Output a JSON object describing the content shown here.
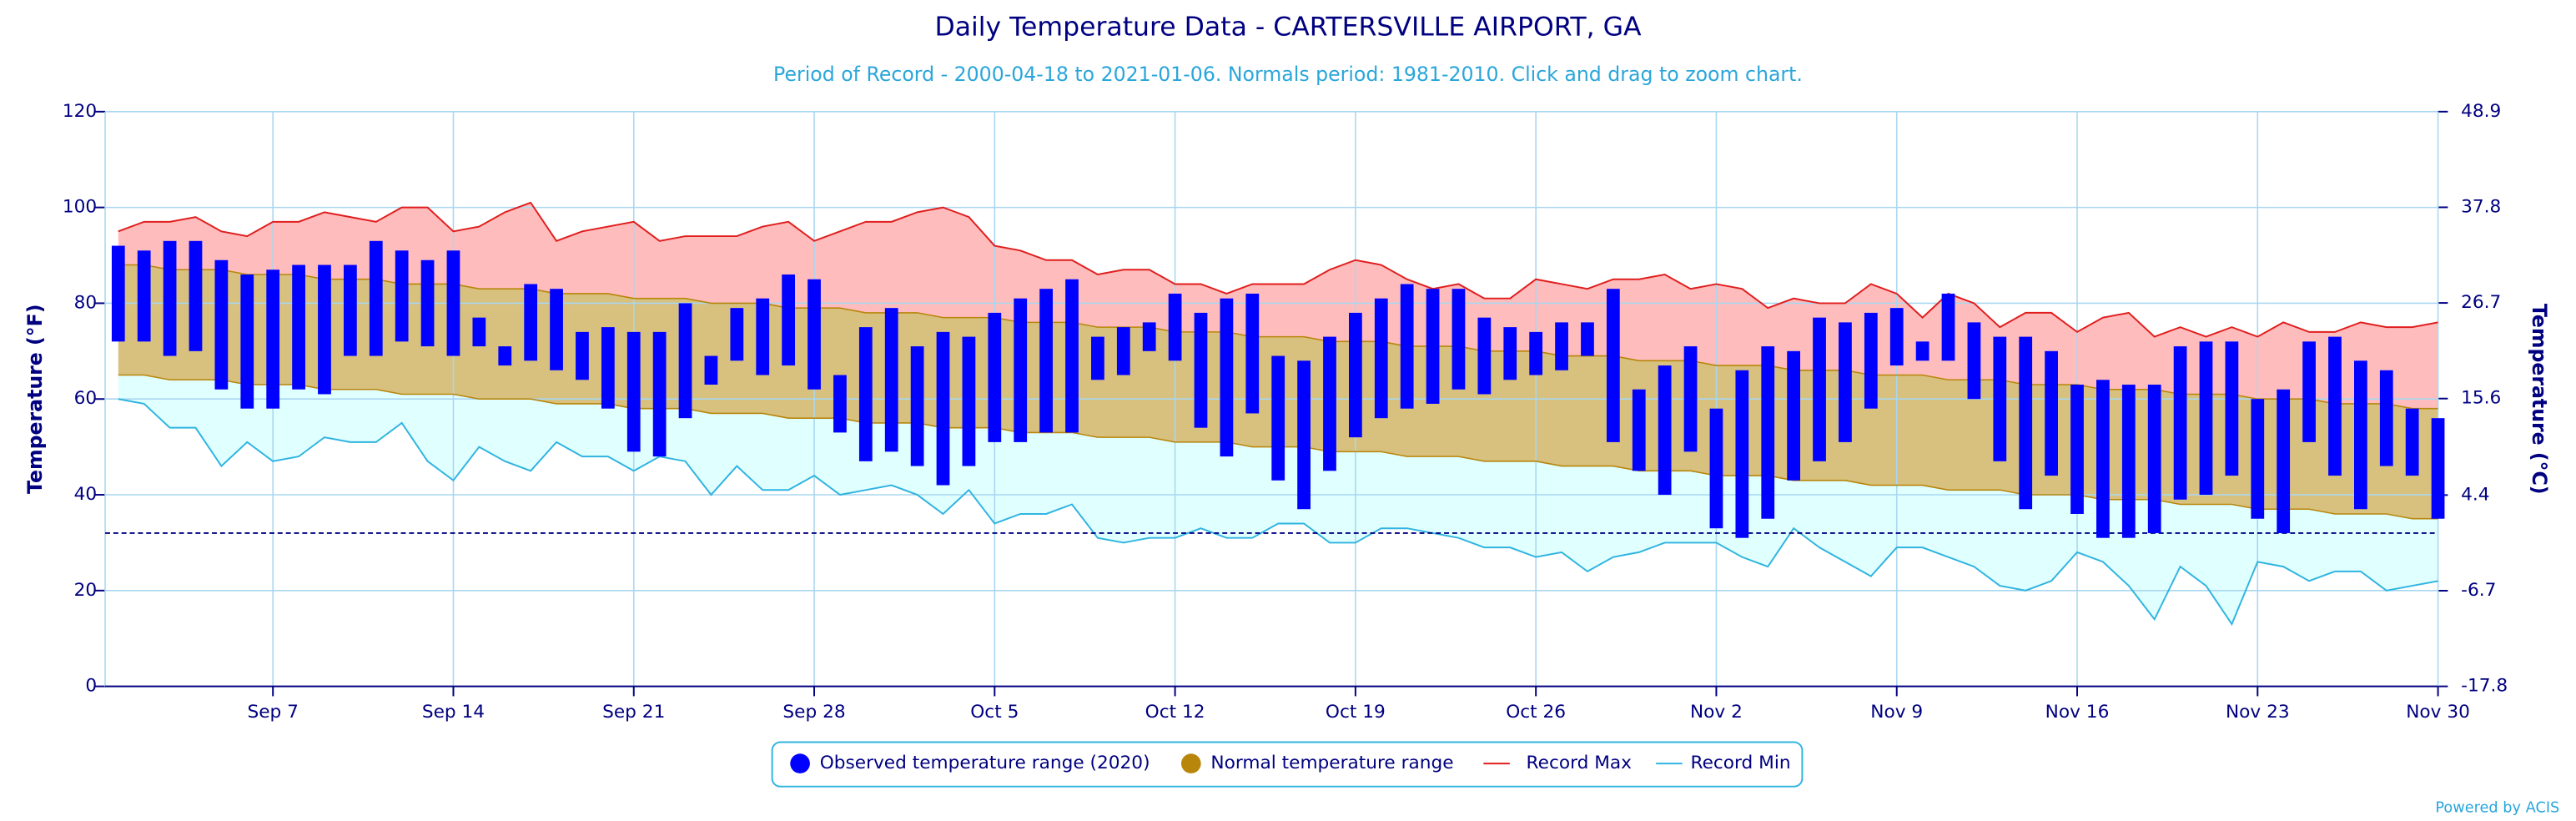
{
  "chart_data": {
    "type": "range",
    "title": "Daily Temperature Data - CARTERSVILLE AIRPORT, GA",
    "subtitle": "Period of Record - 2000-04-18 to 2021-01-06. Normals period: 1981-2010. Click and drag to zoom chart.",
    "y_label": "Temperature (°F)",
    "y2_label": "Temperature (°C)",
    "credit": "Powered by ACIS",
    "x": [
      "Sep 1",
      "Sep 2",
      "Sep 3",
      "Sep 4",
      "Sep 5",
      "Sep 6",
      "Sep 7",
      "Sep 8",
      "Sep 9",
      "Sep 10",
      "Sep 11",
      "Sep 12",
      "Sep 13",
      "Sep 14",
      "Sep 15",
      "Sep 16",
      "Sep 17",
      "Sep 18",
      "Sep 19",
      "Sep 20",
      "Sep 21",
      "Sep 22",
      "Sep 23",
      "Sep 24",
      "Sep 25",
      "Sep 26",
      "Sep 27",
      "Sep 28",
      "Sep 29",
      "Sep 30",
      "Oct 1",
      "Oct 2",
      "Oct 3",
      "Oct 4",
      "Oct 5",
      "Oct 6",
      "Oct 7",
      "Oct 8",
      "Oct 9",
      "Oct 10",
      "Oct 11",
      "Oct 12",
      "Oct 13",
      "Oct 14",
      "Oct 15",
      "Oct 16",
      "Oct 17",
      "Oct 18",
      "Oct 19",
      "Oct 20",
      "Oct 21",
      "Oct 22",
      "Oct 23",
      "Oct 24",
      "Oct 25",
      "Oct 26",
      "Oct 27",
      "Oct 28",
      "Oct 29",
      "Oct 30",
      "Oct 31",
      "Nov 1",
      "Nov 2",
      "Nov 3",
      "Nov 4",
      "Nov 5",
      "Nov 6",
      "Nov 7",
      "Nov 8",
      "Nov 9",
      "Nov 10",
      "Nov 11",
      "Nov 12",
      "Nov 13",
      "Nov 14",
      "Nov 15",
      "Nov 16",
      "Nov 17",
      "Nov 18",
      "Nov 19",
      "Nov 20",
      "Nov 21",
      "Nov 22",
      "Nov 23",
      "Nov 24",
      "Nov 25",
      "Nov 26",
      "Nov 27",
      "Nov 28",
      "Nov 29",
      "Nov 30"
    ],
    "xticks": [
      "Sep 7",
      "Sep 14",
      "Sep 21",
      "Sep 28",
      "Oct 5",
      "Oct 12",
      "Oct 19",
      "Oct 26",
      "Nov 2",
      "Nov 9",
      "Nov 16",
      "Nov 23",
      "Nov 30"
    ],
    "ylim": [
      0,
      120
    ],
    "yticks": [
      0,
      20,
      40,
      60,
      80,
      100,
      120
    ],
    "y2lim": [
      -17.8,
      48.9
    ],
    "y2ticks": [
      -17.8,
      -6.7,
      4.4,
      15.6,
      26.7,
      37.8,
      48.9
    ],
    "grid": true,
    "freeze_line": 32,
    "series": [
      {
        "name": "Observed temperature range (2020)",
        "color": "#0000ff",
        "low": [
          72,
          72,
          69,
          70,
          62,
          58,
          58,
          62,
          61,
          69,
          69,
          72,
          71,
          69,
          71,
          67,
          68,
          66,
          64,
          58,
          49,
          48,
          56,
          63,
          68,
          65,
          67,
          62,
          53,
          47,
          49,
          46,
          42,
          46,
          51,
          51,
          53,
          53,
          64,
          65,
          70,
          68,
          54,
          48,
          57,
          43,
          37,
          45,
          52,
          56,
          58,
          59,
          62,
          61,
          64,
          65,
          66,
          69,
          51,
          45,
          40,
          49,
          33,
          31,
          35,
          43,
          47,
          51,
          58,
          67,
          68,
          68,
          60,
          47,
          37,
          44,
          36,
          31,
          31,
          32,
          39,
          40,
          44,
          35,
          32,
          51,
          44,
          37,
          46,
          44,
          35
        ],
        "high": [
          92,
          91,
          93,
          93,
          89,
          86,
          87,
          88,
          88,
          88,
          93,
          91,
          89,
          91,
          77,
          71,
          84,
          83,
          74,
          75,
          74,
          74,
          80,
          69,
          79,
          81,
          86,
          85,
          65,
          75,
          79,
          71,
          74,
          73,
          78,
          81,
          83,
          85,
          73,
          75,
          76,
          82,
          78,
          81,
          82,
          69,
          68,
          73,
          78,
          81,
          84,
          83,
          83,
          77,
          75,
          74,
          76,
          76,
          83,
          62,
          67,
          71,
          58,
          66,
          71,
          70,
          77,
          76,
          78,
          79,
          72,
          82,
          76,
          73,
          73,
          70,
          63,
          64,
          63,
          63,
          71,
          72,
          72,
          60,
          62,
          72,
          73,
          68,
          66,
          58,
          56
        ]
      },
      {
        "name": "Normal temperature range",
        "color": "#b8860b",
        "fill": "#d8c07e",
        "low": [
          65,
          65,
          64,
          64,
          64,
          63,
          63,
          63,
          62,
          62,
          62,
          61,
          61,
          61,
          60,
          60,
          60,
          59,
          59,
          59,
          58,
          58,
          58,
          57,
          57,
          57,
          56,
          56,
          56,
          55,
          55,
          55,
          54,
          54,
          54,
          53,
          53,
          53,
          52,
          52,
          52,
          51,
          51,
          51,
          50,
          50,
          50,
          49,
          49,
          49,
          48,
          48,
          48,
          47,
          47,
          47,
          46,
          46,
          46,
          45,
          45,
          45,
          44,
          44,
          44,
          43,
          43,
          43,
          42,
          42,
          42,
          41,
          41,
          41,
          40,
          40,
          40,
          39,
          39,
          39,
          38,
          38,
          38,
          37,
          37,
          37,
          36,
          36,
          36,
          35,
          35
        ],
        "high": [
          88,
          88,
          87,
          87,
          87,
          86,
          86,
          86,
          85,
          85,
          85,
          84,
          84,
          84,
          83,
          83,
          83,
          82,
          82,
          82,
          81,
          81,
          81,
          80,
          80,
          80,
          79,
          79,
          79,
          78,
          78,
          78,
          77,
          77,
          77,
          76,
          76,
          76,
          75,
          75,
          75,
          74,
          74,
          74,
          73,
          73,
          73,
          72,
          72,
          72,
          71,
          71,
          71,
          70,
          70,
          70,
          69,
          69,
          69,
          68,
          68,
          68,
          67,
          67,
          67,
          66,
          66,
          66,
          65,
          65,
          65,
          64,
          64,
          64,
          63,
          63,
          63,
          62,
          62,
          62,
          61,
          61,
          61,
          60,
          60,
          60,
          59,
          59,
          59,
          58,
          58
        ]
      },
      {
        "name": "Record Max",
        "color": "#e01e1e",
        "fill": "#ffbcbc",
        "values": [
          95,
          97,
          97,
          98,
          95,
          94,
          97,
          97,
          99,
          98,
          97,
          100,
          100,
          95,
          96,
          99,
          101,
          93,
          95,
          96,
          97,
          93,
          94,
          94,
          94,
          96,
          97,
          93,
          95,
          97,
          97,
          99,
          100,
          98,
          92,
          91,
          89,
          89,
          86,
          87,
          87,
          84,
          84,
          82,
          84,
          84,
          84,
          87,
          89,
          88,
          85,
          83,
          84,
          81,
          81,
          85,
          84,
          83,
          85,
          85,
          86,
          83,
          84,
          83,
          79,
          81,
          80,
          80,
          84,
          82,
          77,
          82,
          80,
          75,
          78,
          78,
          74,
          77,
          78,
          73,
          75,
          73,
          75,
          73,
          76,
          74,
          74,
          76,
          75,
          75,
          76
        ]
      },
      {
        "name": "Record Min",
        "color": "#2fb4e0",
        "fill": "#e0ffff",
        "values": [
          60,
          59,
          54,
          54,
          46,
          51,
          47,
          48,
          52,
          51,
          51,
          55,
          47,
          43,
          50,
          47,
          45,
          51,
          48,
          48,
          45,
          48,
          47,
          40,
          46,
          41,
          41,
          44,
          40,
          41,
          42,
          40,
          36,
          41,
          34,
          36,
          36,
          38,
          31,
          30,
          31,
          31,
          33,
          31,
          31,
          34,
          34,
          30,
          30,
          33,
          33,
          32,
          31,
          29,
          29,
          27,
          28,
          24,
          27,
          28,
          30,
          30,
          30,
          27,
          25,
          33,
          29,
          26,
          23,
          29,
          29,
          27,
          25,
          21,
          20,
          22,
          28,
          26,
          21,
          14,
          25,
          21,
          13,
          26,
          25,
          22,
          24,
          24,
          20,
          21,
          22
        ]
      }
    ]
  }
}
